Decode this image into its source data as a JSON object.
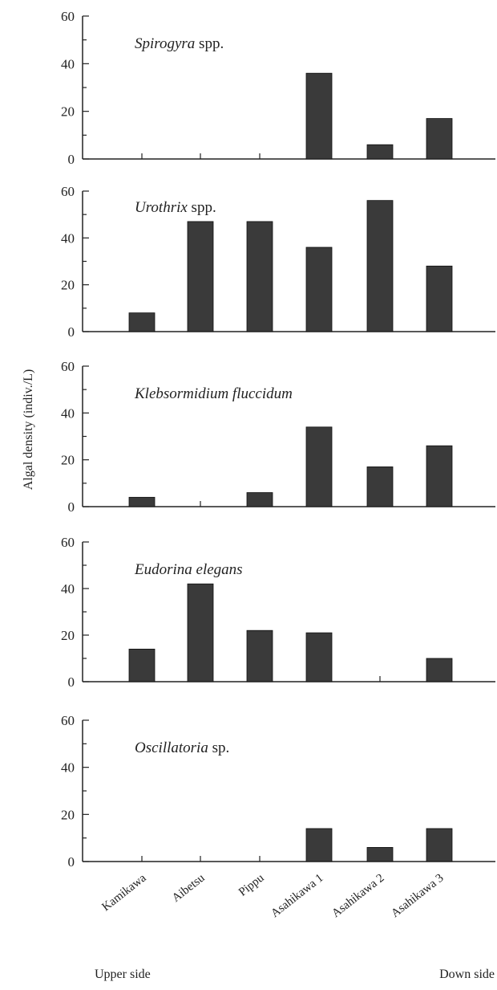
{
  "chart_data": {
    "type": "bar",
    "ylabel": "Algal density (indiv./L)",
    "ylim": [
      0,
      60
    ],
    "yticks": [
      0,
      20,
      40,
      60
    ],
    "categories": [
      "Kamikawa",
      "Aibetsu",
      "Pippu",
      "Asahikawa 1",
      "Asahikawa 2",
      "Asahikawa 3"
    ],
    "footer": {
      "left": "Upper side",
      "right": "Down side"
    },
    "colors": {
      "bar": "#3a3a3a",
      "axis": "#222222"
    },
    "panels": [
      {
        "name_italic": "Spirogyra",
        "name_rest": " spp.",
        "values": [
          0,
          0,
          0,
          36,
          6,
          17
        ]
      },
      {
        "name_italic": "Urothrix",
        "name_rest": " spp.",
        "values": [
          8,
          47,
          47,
          36,
          56,
          28
        ]
      },
      {
        "name_italic": "Klebsormidium fluccidum",
        "name_rest": "",
        "values": [
          4,
          0,
          6,
          34,
          17,
          26
        ]
      },
      {
        "name_italic": "Eudorina elegans",
        "name_rest": "",
        "values": [
          14,
          42,
          22,
          21,
          0,
          10
        ]
      },
      {
        "name_italic": "Oscillatoria",
        "name_rest": " sp.",
        "values": [
          0,
          0,
          0,
          14,
          6,
          14
        ]
      }
    ]
  }
}
